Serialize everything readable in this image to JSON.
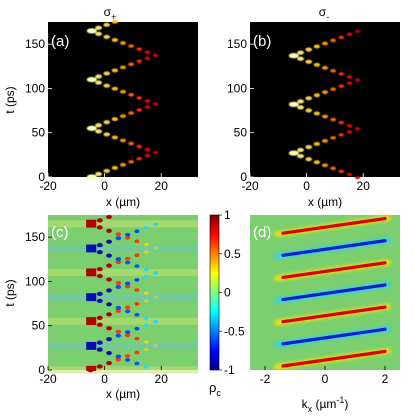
{
  "chart_data": [
    {
      "type": "heatmap",
      "panel_label": "(a)",
      "title": "σ+",
      "xlabel": "x (µm)",
      "ylabel": "t (ps)",
      "xlim": [
        -20,
        33
      ],
      "ylim": [
        0,
        175
      ],
      "xticks": [
        -20,
        0,
        20
      ],
      "yticks": [
        0,
        50,
        100,
        150
      ],
      "colormap": "hot",
      "background": "#000000",
      "features": {
        "description": "zig-zag bright wave packets oscillating between x≈-5 and x≈18",
        "period_ps": 55,
        "chevron_tips_t_ps": [
          0,
          55,
          110,
          165
        ],
        "x_range_um": [
          -5,
          18
        ]
      }
    },
    {
      "type": "heatmap",
      "panel_label": "(b)",
      "title": "σ-",
      "xlabel": "x (µm)",
      "ylabel": "t (ps)",
      "xlim": [
        -20,
        33
      ],
      "ylim": [
        0,
        175
      ],
      "xticks": [
        -20,
        0,
        20
      ],
      "yticks": [
        0,
        50,
        100,
        150
      ],
      "colormap": "hot",
      "background": "#000000",
      "features": {
        "period_ps": 55,
        "chevron_tips_t_ps": [
          27,
          82,
          137
        ],
        "x_range_um": [
          -5,
          18
        ]
      }
    },
    {
      "type": "heatmap",
      "panel_label": "(c)",
      "xlabel": "x (µm)",
      "ylabel": "t (ps)",
      "xlim": [
        -20,
        33
      ],
      "ylim": [
        0,
        175
      ],
      "xticks": [
        -20,
        0,
        20
      ],
      "yticks": [
        0,
        50,
        100,
        150
      ],
      "colormap": "jet",
      "colorbar": {
        "label": "ρc",
        "ticks": [
          1,
          0.5,
          0,
          -0.5,
          -1
        ],
        "tick_labels": [
          "1",
          "0.5",
          "0",
          "-0.5",
          "-1"
        ]
      },
      "features": {
        "period_ps": 55,
        "red_bands_t_ps": [
          0,
          55,
          110,
          165
        ],
        "blue_bands_t_ps": [
          27,
          82,
          137
        ]
      }
    },
    {
      "type": "heatmap",
      "panel_label": "(d)",
      "xlabel": "kx (µm⁻¹)",
      "xlim": [
        -2.5,
        2.5
      ],
      "ylim": [
        0,
        175
      ],
      "xticks": [
        -2,
        0,
        2
      ],
      "colormap": "jet",
      "features": {
        "description": "alternating red and blue diagonal stripes",
        "stripe_count": 7,
        "stripe_colors": [
          "red",
          "blue",
          "red",
          "blue",
          "red",
          "blue",
          "red"
        ]
      }
    }
  ],
  "panels": {
    "a": {
      "label": "(a)",
      "title_base": "σ",
      "title_sub": "+",
      "xlabel": "x (µm)",
      "ylabel": "t (ps)"
    },
    "b": {
      "label": "(b)",
      "title_base": "σ",
      "title_sub": "-",
      "xlabel": "x (µm)"
    },
    "c": {
      "label": "(c)",
      "xlabel": "x (µm)",
      "ylabel": "t (ps)"
    },
    "d": {
      "label": "(d)",
      "xlabel_base": "k",
      "xlabel_sub": "x",
      "xlabel_rest": " (µm",
      "xlabel_sup": "-1",
      "xlabel_end": ")"
    },
    "colorbar": {
      "label_base": "ρ",
      "label_sub": "c"
    },
    "ticks": {
      "x_um": [
        "-20",
        "0",
        "20"
      ],
      "t_ps": [
        "0",
        "50",
        "100",
        "150"
      ],
      "kx": [
        "-2",
        "0",
        "2"
      ],
      "cbar": [
        "1",
        "0.5",
        "0",
        "-0.5",
        "-1"
      ]
    }
  }
}
